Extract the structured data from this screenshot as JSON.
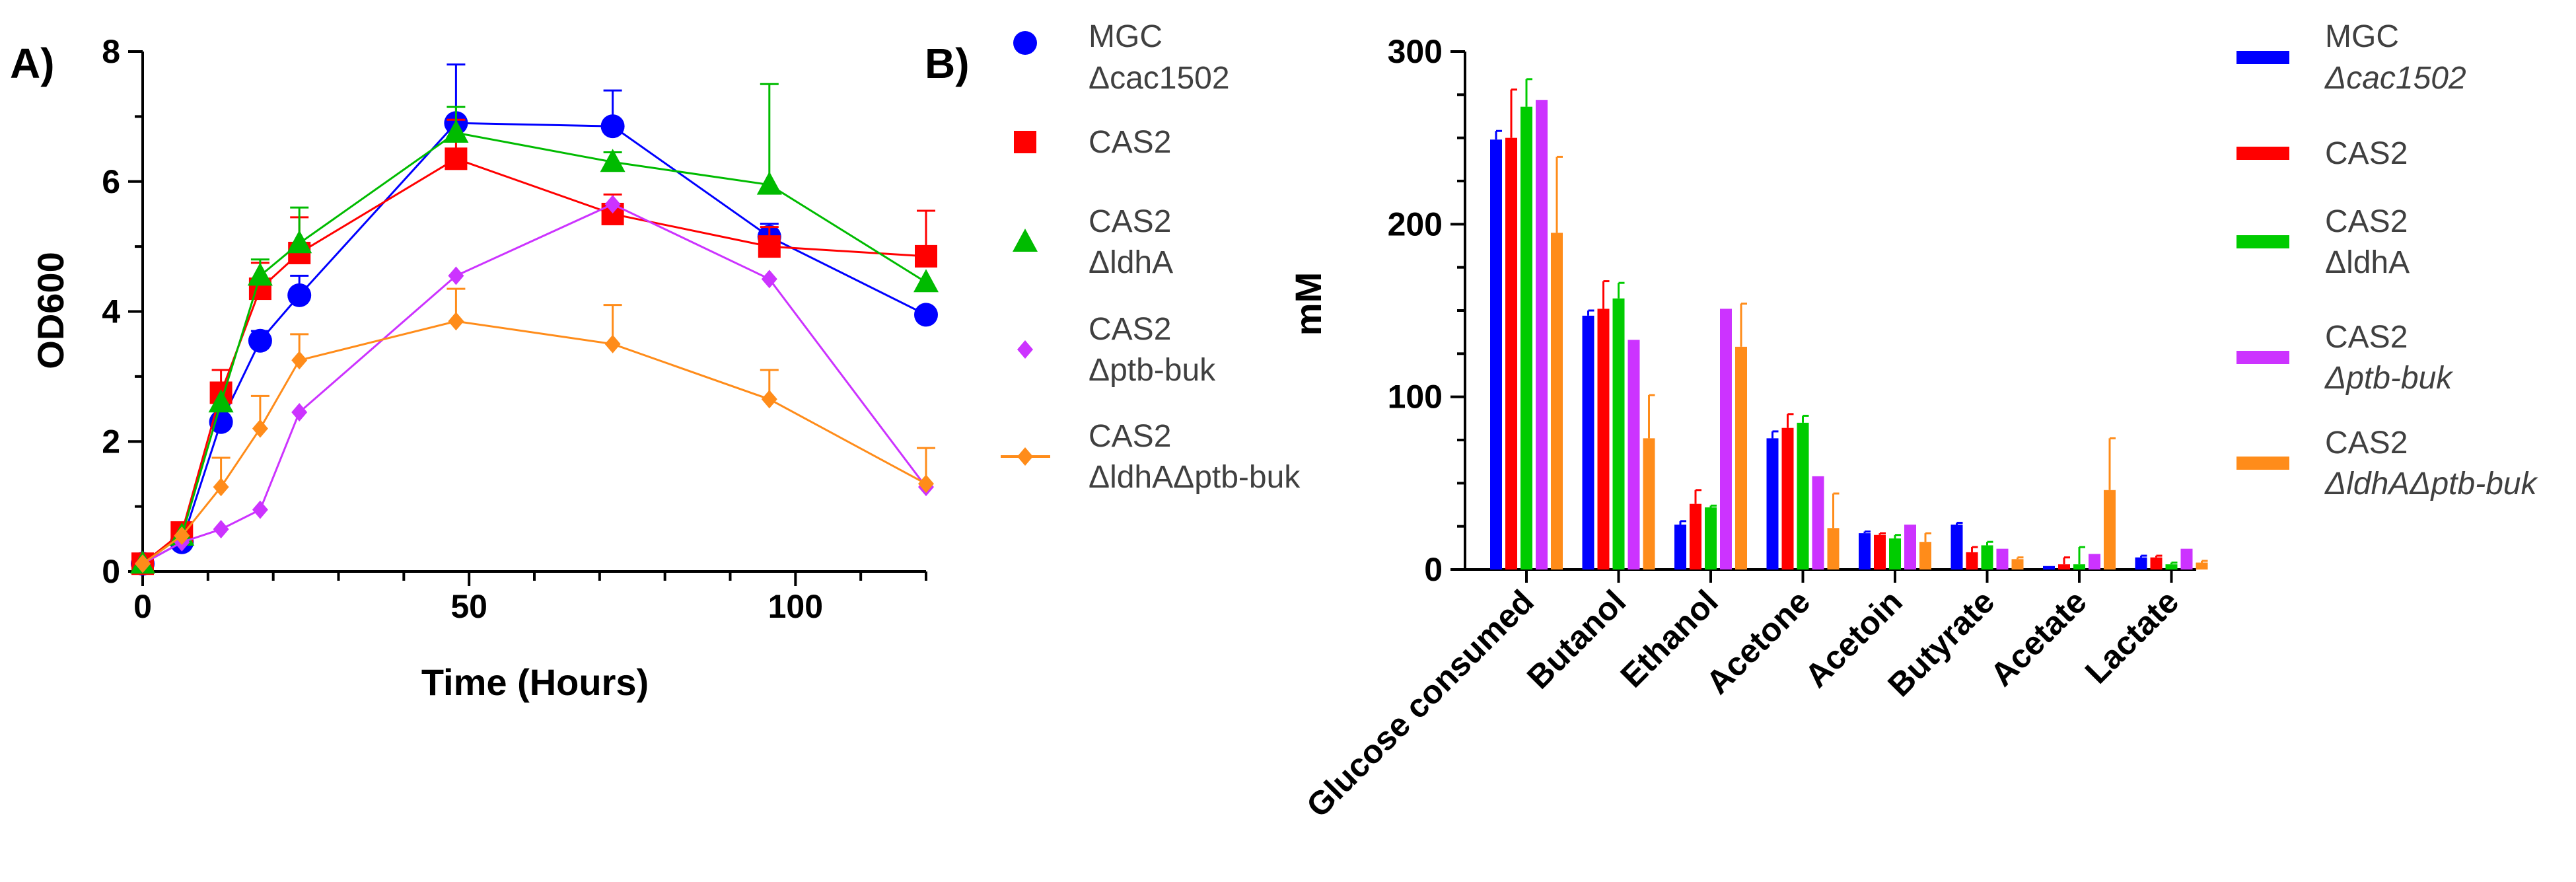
{
  "chart_data": [
    {
      "type": "line",
      "panel_label": "A)",
      "title": "",
      "xlabel": "Time (Hours)",
      "ylabel": "OD600",
      "xlim": [
        0,
        120
      ],
      "ylim": [
        0,
        8
      ],
      "xticks": [
        "0",
        "50",
        "100"
      ],
      "yticks": [
        "0",
        "2",
        "4",
        "6",
        "8"
      ],
      "x": [
        0,
        6,
        12,
        18,
        24,
        48,
        72,
        96,
        120
      ],
      "series": [
        {
          "name": "MGC Δcac1502",
          "legend": [
            "MGC",
            "Δcac1502"
          ],
          "color": "#0000ff",
          "marker": "circle",
          "values": [
            0.12,
            0.45,
            2.3,
            3.55,
            4.25,
            6.9,
            6.85,
            5.15,
            3.95
          ],
          "errors": [
            0,
            0,
            0,
            0.15,
            0.3,
            0.9,
            0.55,
            0.2,
            0
          ]
        },
        {
          "name": "CAS2",
          "legend": [
            "CAS2"
          ],
          "color": "#ff0000",
          "marker": "square",
          "values": [
            0.12,
            0.6,
            2.75,
            4.35,
            4.9,
            6.35,
            5.5,
            5.0,
            4.85
          ],
          "errors": [
            0,
            0,
            0.35,
            0.4,
            0.55,
            0.6,
            0.3,
            0.3,
            0.7
          ]
        },
        {
          "name": "CAS2 ΔldhA",
          "legend": [
            "CAS2",
            "ΔldhA"
          ],
          "color": "#00bb00",
          "marker": "triangle",
          "values": [
            0.12,
            0.55,
            2.6,
            4.55,
            5.05,
            6.75,
            6.3,
            5.95,
            4.45
          ],
          "errors": [
            0,
            0,
            0,
            0.25,
            0.55,
            0.4,
            0.15,
            1.55,
            0
          ]
        },
        {
          "name": "CAS2 Δptb-buk",
          "legend": [
            "CAS2",
            "Δptb-buk"
          ],
          "color": "#cc33ff",
          "marker": "diamond",
          "values": [
            0.12,
            0.45,
            0.65,
            0.95,
            2.45,
            4.55,
            5.65,
            4.5,
            1.3
          ],
          "errors": [
            0,
            0,
            0,
            0,
            0,
            0,
            0,
            0,
            0
          ]
        },
        {
          "name": "CAS2 ΔldhAΔptb-buk",
          "legend": [
            "CAS2",
            "ΔldhAΔptb-buk"
          ],
          "color": "#ff8c1a",
          "marker": "diamond",
          "values": [
            0.12,
            0.55,
            1.3,
            2.2,
            3.25,
            3.85,
            3.5,
            2.65,
            1.35
          ],
          "errors": [
            0,
            0,
            0.45,
            0.5,
            0.4,
            0.5,
            0.6,
            0.45,
            0.55
          ]
        }
      ]
    },
    {
      "type": "bar",
      "panel_label": "B)",
      "title": "",
      "xlabel": "",
      "ylabel": "mM",
      "ylim": [
        0,
        300
      ],
      "yticks": [
        "0",
        "100",
        "200",
        "300"
      ],
      "categories": [
        "Glucose consumed",
        "Butanol",
        "Ethanol",
        "Acetone",
        "Acetoin",
        "Butyrate",
        "Acetate",
        "Lactate"
      ],
      "series": [
        {
          "name": "MGC Δcac1502",
          "legend": [
            "MGC",
            "Δcac1502"
          ],
          "color": "#0000ff",
          "values": [
            249,
            147,
            26,
            76,
            21,
            26,
            2,
            7
          ],
          "errors": [
            5,
            3,
            2,
            4,
            1,
            1,
            0,
            1
          ]
        },
        {
          "name": "CAS2",
          "legend": [
            "CAS2"
          ],
          "color": "#ff0000",
          "values": [
            250,
            151,
            38,
            82,
            20,
            10,
            3,
            7
          ],
          "errors": [
            28,
            16,
            8,
            8,
            1,
            3,
            4,
            1
          ]
        },
        {
          "name": "CAS2 ΔldhA",
          "legend": [
            "CAS2",
            "ΔldhA"
          ],
          "color": "#00cc00",
          "values": [
            268,
            157,
            36,
            85,
            18,
            14,
            3,
            3
          ],
          "errors": [
            16,
            9,
            1,
            4,
            2,
            2,
            10,
            1
          ]
        },
        {
          "name": "CAS2 Δptb-buk",
          "legend": [
            "CAS2",
            "Δptb-buk"
          ],
          "color": "#cc33ff",
          "values": [
            272,
            133,
            151,
            54,
            26,
            12,
            9,
            12
          ],
          "errors": [
            0,
            0,
            0,
            0,
            0,
            0,
            0,
            0
          ]
        },
        {
          "name": "CAS2 ΔldhAΔptb-buk",
          "legend": [
            "CAS2",
            "ΔldhAΔptb-buk"
          ],
          "color": "#ff8c1a",
          "values": [
            195,
            76,
            129,
            24,
            16,
            6,
            46,
            4
          ],
          "errors": [
            44,
            25,
            25,
            20,
            5,
            1,
            30,
            1
          ]
        }
      ]
    }
  ]
}
